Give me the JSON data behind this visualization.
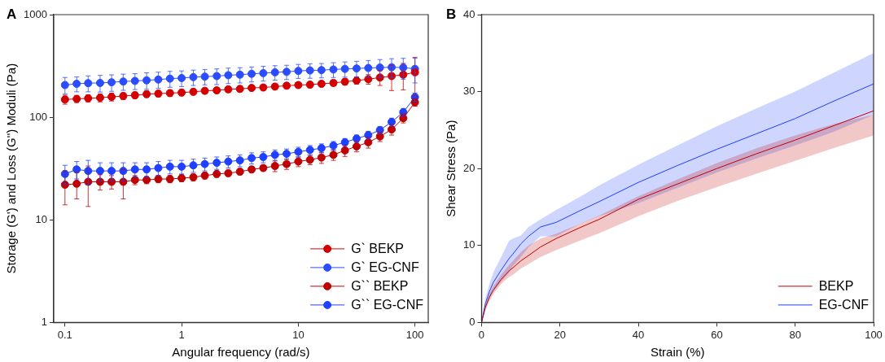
{
  "chart_data": [
    {
      "type": "line",
      "title": "A",
      "xlabel": "Angular frequency (rad/s)",
      "ylabel": "Storage (G') and Loss (G'') Moduli (Pa)",
      "log": "xy",
      "xlim": [
        0.08,
        130
      ],
      "xticks": [
        0.1,
        1,
        10,
        100
      ],
      "ylim": [
        1,
        1000
      ],
      "yticks": [
        1,
        10,
        100,
        1000
      ],
      "marker": "circle",
      "legend": "bottom right",
      "grid": false,
      "x": [
        0.1,
        0.126,
        0.158,
        0.2,
        0.251,
        0.316,
        0.398,
        0.501,
        0.631,
        0.794,
        1,
        1.26,
        1.58,
        2,
        2.51,
        3.16,
        3.98,
        5.01,
        6.31,
        7.94,
        10,
        12.6,
        15.8,
        20,
        25.1,
        31.6,
        39.8,
        50.1,
        63.1,
        79.4,
        100
      ],
      "series": [
        {
          "name": "G` BEKP",
          "color": "#d40000",
          "values": [
            149,
            151,
            153,
            155,
            158,
            161,
            164,
            168,
            170,
            172,
            174,
            177,
            181,
            183,
            187,
            189,
            193,
            195,
            199,
            203,
            206,
            208,
            212,
            216,
            222,
            228,
            235,
            244,
            252,
            260,
            274
          ],
          "errors": [
            15,
            12,
            12,
            14,
            14,
            12,
            12,
            12,
            12,
            12,
            12,
            12,
            12,
            12,
            12,
            12,
            12,
            12,
            12,
            12,
            12,
            14,
            14,
            14,
            16,
            18,
            25,
            40,
            70,
            75,
            110
          ]
        },
        {
          "name": "G` EG-CNF",
          "color": "#2b4dff",
          "values": [
            206,
            212,
            215,
            216,
            219,
            223,
            226,
            229,
            233,
            238,
            241,
            246,
            249,
            252,
            257,
            260,
            265,
            269,
            274,
            277,
            283,
            286,
            288,
            292,
            296,
            299,
            302,
            305,
            307,
            305,
            296
          ],
          "errors": [
            38,
            35,
            38,
            40,
            40,
            40,
            40,
            42,
            42,
            42,
            42,
            42,
            42,
            44,
            44,
            44,
            44,
            44,
            44,
            44,
            44,
            46,
            46,
            48,
            50,
            52,
            55,
            60,
            65,
            70,
            80
          ]
        },
        {
          "name": "G`` BEKP",
          "color": "#c00000",
          "values": [
            22,
            22.5,
            23.5,
            23.5,
            23.5,
            23.5,
            24.5,
            24.5,
            25,
            25,
            25.5,
            26,
            27,
            28,
            28.5,
            29.5,
            31,
            32,
            33.5,
            35,
            37,
            38.5,
            40.5,
            43,
            47.5,
            52,
            57,
            65,
            76,
            98,
            140
          ],
          "errors": [
            8,
            6.5,
            10,
            4,
            3.5,
            7.5,
            2.5,
            2,
            2,
            2,
            2,
            2,
            2,
            2,
            2,
            2,
            2,
            2,
            4,
            4,
            4,
            4,
            5,
            5,
            6,
            6,
            7,
            7,
            9,
            10,
            12
          ]
        },
        {
          "name": "G`` EG-CNF",
          "color": "#2040ff",
          "values": [
            28,
            31,
            30,
            30,
            30,
            30,
            31,
            31,
            32,
            33,
            33,
            34,
            35,
            36,
            37,
            38,
            40,
            41,
            43,
            44,
            46,
            48,
            50,
            53,
            57,
            62,
            67,
            75,
            90,
            112,
            157
          ],
          "errors": [
            6,
            6,
            8,
            6,
            6,
            6,
            5,
            5,
            5,
            5,
            5,
            5,
            5,
            5,
            5,
            5,
            5,
            5,
            5,
            5,
            5,
            5,
            5,
            5,
            5,
            5,
            6,
            6,
            8,
            10,
            15
          ]
        }
      ]
    },
    {
      "type": "line",
      "title": "B",
      "xlabel": "Strain (%)",
      "ylabel": "Shear Stress (Pa)",
      "xlim": [
        0,
        100
      ],
      "xticks": [
        0,
        20,
        40,
        60,
        80,
        100
      ],
      "ylim": [
        0,
        40
      ],
      "yticks": [
        0,
        10,
        20,
        30,
        40
      ],
      "marker": "none",
      "legend": "bottom right",
      "grid": false,
      "x": [
        0,
        1,
        2,
        3,
        5,
        7,
        8,
        10,
        12,
        15,
        19,
        25,
        30,
        40,
        50,
        60,
        70,
        80,
        90,
        100
      ],
      "series": [
        {
          "name": "BEKP",
          "color": "#c00000",
          "values": [
            0,
            2.0,
            3.3,
            4.2,
            5.6,
            6.7,
            7.1,
            8.0,
            8.7,
            9.8,
            10.9,
            12.3,
            13.4,
            16,
            18,
            20,
            21.9,
            23.7,
            25.6,
            27.5
          ],
          "lower": [
            0,
            1.6,
            2.8,
            3.7,
            5.0,
            5.9,
            6.2,
            7.0,
            7.6,
            8.5,
            9.4,
            10.6,
            11.6,
            13.8,
            15.8,
            17.6,
            19.3,
            21,
            22.7,
            24.3
          ],
          "upper": [
            0,
            2.3,
            3.7,
            4.7,
            6.2,
            7.5,
            8.0,
            9.1,
            10.0,
            10.9,
            11.5,
            12.8,
            13.9,
            16.4,
            18.6,
            20.7,
            22.6,
            24.3,
            25.8,
            27
          ]
        },
        {
          "name": "EG-CNF",
          "color": "#1f3fff",
          "values": [
            0,
            2.5,
            4.0,
            5.2,
            6.8,
            8.3,
            8.9,
            10.2,
            11.2,
            12.4,
            13.0,
            14.5,
            15.7,
            18.2,
            20.4,
            22.5,
            24.5,
            26.5,
            28.8,
            31
          ],
          "lower": [
            0,
            1.8,
            3.0,
            4.0,
            5.3,
            6.5,
            7.3,
            8.5,
            9.8,
            11.2,
            11.2,
            12.8,
            13.8,
            15.5,
            17.5,
            19.5,
            21.3,
            23,
            24.8,
            27
          ],
          "upper": [
            0,
            3.2,
            5.0,
            6.5,
            8.5,
            10.6,
            10.9,
            11.3,
            12.4,
            13.4,
            14.6,
            16.3,
            17.8,
            20.5,
            23,
            25.5,
            27.8,
            30,
            32.5,
            35
          ]
        }
      ]
    }
  ]
}
